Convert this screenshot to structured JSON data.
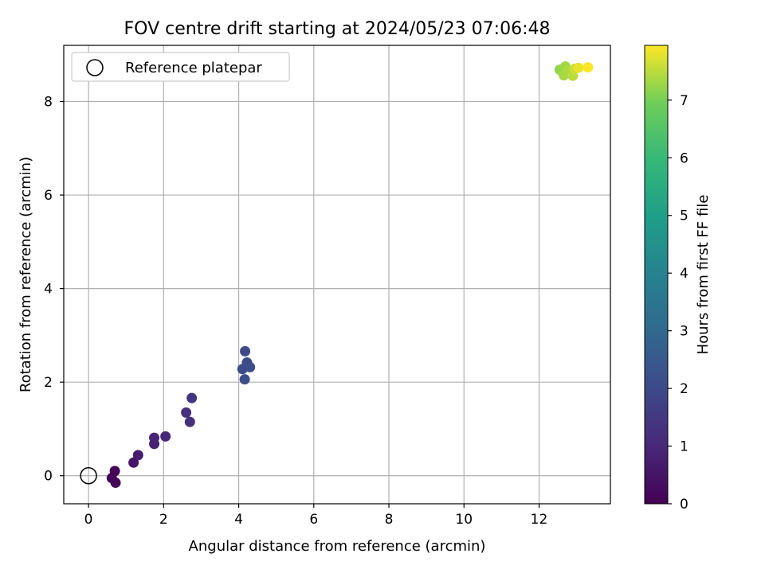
{
  "chart_data": {
    "type": "scatter",
    "title": "FOV centre drift starting at 2024/05/23 07:06:48",
    "xlabel": "Angular distance from reference (arcmin)",
    "ylabel": "Rotation from reference (arcmin)",
    "xlim": [
      -0.66,
      13.9
    ],
    "ylim": [
      -0.6,
      9.2
    ],
    "xticks": [
      0,
      2,
      4,
      6,
      8,
      10,
      12
    ],
    "yticks": [
      0,
      2,
      4,
      6,
      8
    ],
    "grid": true,
    "legend": {
      "placement": "top-left",
      "entries": [
        "Reference platepar"
      ]
    },
    "reference_point": {
      "x": 0,
      "y": 0,
      "label": "Reference platepar"
    },
    "colorbar": {
      "label": "Hours from first FF file",
      "colormap": "viridis",
      "range": [
        0,
        7.95
      ],
      "ticks": [
        0,
        1,
        2,
        3,
        4,
        5,
        6,
        7
      ]
    },
    "points": [
      {
        "x": 0.7,
        "y": 0.1,
        "hours": 0.05
      },
      {
        "x": 0.62,
        "y": -0.05,
        "hours": 0.08
      },
      {
        "x": 0.72,
        "y": -0.15,
        "hours": 0.1
      },
      {
        "x": 1.2,
        "y": 0.28,
        "hours": 0.55
      },
      {
        "x": 1.32,
        "y": 0.44,
        "hours": 0.7
      },
      {
        "x": 1.75,
        "y": 0.68,
        "hours": 0.85
      },
      {
        "x": 1.75,
        "y": 0.81,
        "hours": 0.9
      },
      {
        "x": 2.05,
        "y": 0.84,
        "hours": 1.0
      },
      {
        "x": 2.6,
        "y": 1.35,
        "hours": 1.2
      },
      {
        "x": 2.7,
        "y": 1.15,
        "hours": 1.25
      },
      {
        "x": 2.75,
        "y": 1.66,
        "hours": 1.35
      },
      {
        "x": 4.17,
        "y": 2.66,
        "hours": 2.0
      },
      {
        "x": 4.22,
        "y": 2.42,
        "hours": 2.05
      },
      {
        "x": 4.1,
        "y": 2.28,
        "hours": 2.1
      },
      {
        "x": 4.3,
        "y": 2.32,
        "hours": 2.12
      },
      {
        "x": 4.16,
        "y": 2.06,
        "hours": 2.15
      },
      {
        "x": 12.55,
        "y": 8.68,
        "hours": 7.2
      },
      {
        "x": 12.62,
        "y": 8.63,
        "hours": 7.25
      },
      {
        "x": 12.7,
        "y": 8.75,
        "hours": 7.3
      },
      {
        "x": 12.66,
        "y": 8.56,
        "hours": 7.35
      },
      {
        "x": 12.78,
        "y": 8.67,
        "hours": 7.4
      },
      {
        "x": 12.9,
        "y": 8.55,
        "hours": 7.5
      },
      {
        "x": 12.95,
        "y": 8.7,
        "hours": 7.6
      },
      {
        "x": 13.05,
        "y": 8.72,
        "hours": 7.8
      },
      {
        "x": 13.3,
        "y": 8.73,
        "hours": 7.95
      }
    ]
  }
}
